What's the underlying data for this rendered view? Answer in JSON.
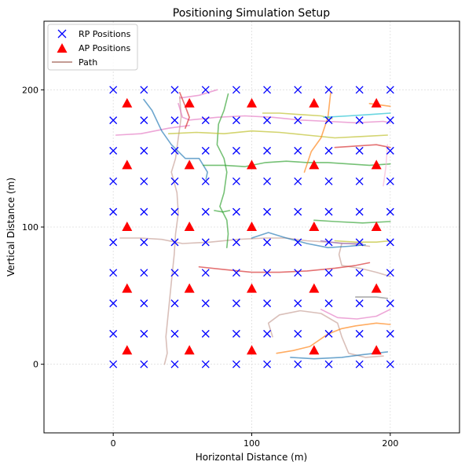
{
  "chart_data": {
    "type": "scatter",
    "title": "Positioning Simulation Setup",
    "xlabel": "Horizontal Distance (m)",
    "ylabel": "Vertical Distance (m)",
    "xlim": [
      -50,
      250
    ],
    "ylim": [
      -50,
      250
    ],
    "xticks": [
      0,
      100,
      200
    ],
    "yticks": [
      0,
      100,
      200
    ],
    "grid": true,
    "legend_position": "top-left",
    "colors": {
      "rp": "#0000ff",
      "ap": "#ff0000",
      "path_legend": "#c49c94",
      "grid": "#dddddd"
    },
    "series": [
      {
        "name": "RP Positions",
        "marker": "x",
        "x": [
          0,
          22.2,
          44.4,
          66.7,
          88.9,
          111.1,
          133.3,
          155.6,
          177.8,
          200
        ],
        "y": [
          0,
          22.2,
          44.4,
          66.7,
          88.9,
          111.1,
          133.3,
          155.6,
          177.8,
          200
        ]
      },
      {
        "name": "AP Positions",
        "marker": "triangle",
        "x": [
          10,
          55,
          100,
          145,
          190
        ],
        "y": [
          10,
          55,
          100,
          145,
          190
        ]
      },
      {
        "name": "Path",
        "marker": "line",
        "paths": [
          {
            "color": "#c49c94",
            "points": [
              [
                37,
                0
              ],
              [
                39,
                8
              ],
              [
                38,
                20
              ],
              [
                40,
                40
              ],
              [
                42,
                60
              ],
              [
                44,
                80
              ],
              [
                45,
                95
              ],
              [
                47,
                110
              ],
              [
                46,
                125
              ],
              [
                42,
                140
              ],
              [
                45,
                150
              ],
              [
                47,
                165
              ],
              [
                49,
                180
              ],
              [
                48,
                195
              ]
            ]
          },
          {
            "color": "#c49c94",
            "points": [
              [
                5,
                92
              ],
              [
                20,
                92
              ],
              [
                35,
                91
              ],
              [
                50,
                88
              ],
              [
                70,
                89
              ],
              [
                90,
                91
              ],
              [
                110,
                92
              ],
              [
                125,
                92
              ],
              [
                140,
                90
              ],
              [
                155,
                89
              ],
              [
                170,
                88
              ],
              [
                185,
                86
              ]
            ]
          },
          {
            "color": "#c49c94",
            "points": [
              [
                115,
                20
              ],
              [
                112,
                30
              ],
              [
                120,
                36
              ],
              [
                135,
                39
              ],
              [
                150,
                37
              ],
              [
                162,
                30
              ],
              [
                165,
                20
              ],
              [
                170,
                8
              ],
              [
                182,
                5
              ],
              [
                195,
                6
              ]
            ]
          },
          {
            "color": "#c49c94",
            "points": [
              [
                165,
                88
              ],
              [
                163,
                80
              ],
              [
                165,
                72
              ],
              [
                178,
                70
              ],
              [
                190,
                67
              ],
              [
                200,
                64
              ]
            ]
          },
          {
            "color": "#e377c2",
            "points": [
              [
                47,
                190
              ],
              [
                50,
                180
              ],
              [
                55,
                178
              ],
              [
                75,
                180
              ],
              [
                95,
                181
              ],
              [
                115,
                180
              ],
              [
                135,
                178
              ],
              [
                155,
                177
              ],
              [
                175,
                176
              ],
              [
                195,
                177
              ],
              [
                200,
                176
              ]
            ]
          },
          {
            "color": "#e377c2",
            "points": [
              [
                2,
                167
              ],
              [
                20,
                168
              ],
              [
                40,
                172
              ],
              [
                55,
                174
              ]
            ]
          },
          {
            "color": "#e377c2",
            "points": [
              [
                48,
                194
              ],
              [
                62,
                196
              ],
              [
                75,
                200
              ]
            ]
          },
          {
            "color": "#e377c2",
            "points": [
              [
                150,
                40
              ],
              [
                162,
                34
              ],
              [
                176,
                33
              ],
              [
                190,
                35
              ],
              [
                200,
                40
              ]
            ]
          },
          {
            "color": "#1f77b4",
            "points": [
              [
                22,
                193
              ],
              [
                28,
                185
              ],
              [
                35,
                170
              ],
              [
                42,
                160
              ],
              [
                52,
                150
              ],
              [
                62,
                150
              ],
              [
                68,
                140
              ],
              [
                67,
                135
              ]
            ]
          },
          {
            "color": "#1f77b4",
            "points": [
              [
                128,
                5
              ],
              [
                145,
                4
              ],
              [
                165,
                5
              ],
              [
                180,
                7
              ],
              [
                198,
                9
              ]
            ]
          },
          {
            "color": "#1f77b4",
            "points": [
              [
                100,
                92
              ],
              [
                112,
                96
              ],
              [
                125,
                92
              ],
              [
                140,
                88
              ],
              [
                155,
                85
              ],
              [
                170,
                86
              ],
              [
                182,
                87
              ]
            ]
          },
          {
            "color": "#2ca02c",
            "points": [
              [
                83,
                197
              ],
              [
                80,
                185
              ],
              [
                76,
                175
              ],
              [
                75,
                160
              ],
              [
                80,
                150
              ],
              [
                82,
                140
              ],
              [
                80,
                125
              ],
              [
                77,
                115
              ],
              [
                82,
                105
              ],
              [
                83,
                95
              ],
              [
                82,
                85
              ]
            ]
          },
          {
            "color": "#2ca02c",
            "points": [
              [
                65,
                145
              ],
              [
                80,
                145
              ],
              [
                95,
                144
              ],
              [
                110,
                147
              ],
              [
                125,
                148
              ],
              [
                140,
                147
              ],
              [
                155,
                147
              ],
              [
                170,
                146
              ],
              [
                185,
                145
              ],
              [
                200,
                146
              ]
            ]
          },
          {
            "color": "#2ca02c",
            "points": [
              [
                145,
                105
              ],
              [
                160,
                104
              ],
              [
                180,
                103
              ],
              [
                200,
                104
              ]
            ]
          },
          {
            "color": "#2ca02c",
            "points": [
              [
                73,
                112
              ],
              [
                79,
                111
              ],
              [
                84,
                112
              ]
            ]
          },
          {
            "color": "#bcbd22",
            "points": [
              [
                40,
                168
              ],
              [
                60,
                169
              ],
              [
                80,
                168
              ],
              [
                100,
                170
              ],
              [
                120,
                169
              ],
              [
                140,
                167
              ],
              [
                160,
                165
              ],
              [
                180,
                166
              ],
              [
                198,
                167
              ]
            ]
          },
          {
            "color": "#bcbd22",
            "points": [
              [
                108,
                183
              ],
              [
                120,
                183
              ],
              [
                135,
                182
              ],
              [
                150,
                181
              ],
              [
                158,
                179
              ]
            ]
          },
          {
            "color": "#bcbd22",
            "points": [
              [
                160,
                90
              ],
              [
                175,
                89
              ],
              [
                190,
                89
              ],
              [
                200,
                90
              ]
            ]
          },
          {
            "color": "#ff7f0e",
            "points": [
              [
                138,
                140
              ],
              [
                143,
                155
              ],
              [
                150,
                165
              ],
              [
                155,
                180
              ],
              [
                157,
                198
              ]
            ]
          },
          {
            "color": "#ff7f0e",
            "points": [
              [
                118,
                8
              ],
              [
                130,
                10
              ],
              [
                142,
                13
              ],
              [
                155,
                22
              ],
              [
                165,
                26
              ],
              [
                175,
                28
              ],
              [
                190,
                30
              ],
              [
                200,
                29
              ]
            ]
          },
          {
            "color": "#ff7f0e",
            "points": [
              [
                185,
                190
              ],
              [
                200,
                188
              ]
            ]
          },
          {
            "color": "#d62728",
            "points": [
              [
                62,
                71
              ],
              [
                80,
                69
              ],
              [
                100,
                67
              ],
              [
                120,
                67
              ],
              [
                140,
                68
              ],
              [
                160,
                70
              ],
              [
                175,
                72
              ],
              [
                185,
                74
              ]
            ]
          },
          {
            "color": "#d62728",
            "points": [
              [
                48,
                198
              ],
              [
                52,
                188
              ],
              [
                55,
                180
              ],
              [
                52,
                172
              ]
            ]
          },
          {
            "color": "#d62728",
            "points": [
              [
                160,
                158
              ],
              [
                175,
                159
              ],
              [
                190,
                160
              ],
              [
                200,
                158
              ]
            ]
          },
          {
            "color": "#17becf",
            "points": [
              [
                152,
                180
              ],
              [
                170,
                181
              ],
              [
                185,
                182
              ],
              [
                200,
                183
              ]
            ]
          },
          {
            "color": "#9467bd",
            "points": [
              [
                150,
                90
              ],
              [
                165,
                88
              ],
              [
                180,
                88
              ]
            ]
          },
          {
            "color": "#7f7f7f",
            "points": [
              [
                175,
                49
              ],
              [
                190,
                49
              ],
              [
                198,
                48
              ]
            ]
          },
          {
            "color": "#f7b6d2",
            "points": [
              [
                195,
                130
              ],
              [
                197,
                145
              ],
              [
                198,
                160
              ]
            ]
          }
        ]
      }
    ]
  }
}
